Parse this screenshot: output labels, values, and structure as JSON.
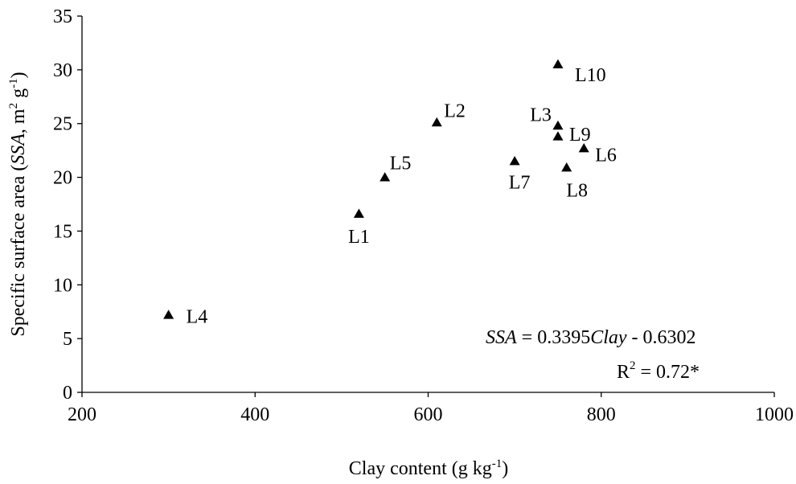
{
  "chart_data": {
    "type": "scatter",
    "title": "",
    "xlabel": "Clay content (g kg-1)",
    "xlabel_parts": {
      "text": "Clay content (g kg",
      "sup": "-1",
      "close": ")"
    },
    "ylabel": "Specific surface area (SSA, m2 g-1)",
    "ylabel_parts": {
      "pre": "Specific surface area (",
      "ital": "SSA",
      "mid": ", m",
      "sup1": "2",
      "g": " g",
      "sup2": "-1",
      "close": ")"
    },
    "xlim": [
      200,
      1000
    ],
    "ylim": [
      0,
      35
    ],
    "x_ticks": [
      200,
      400,
      600,
      800,
      1000
    ],
    "y_ticks": [
      0,
      5,
      10,
      15,
      20,
      25,
      30,
      35
    ],
    "grid": false,
    "legend": "none",
    "marker": "triangle",
    "marker_color": "#000000",
    "points": [
      {
        "label": "L1",
        "x": 520,
        "y": 16.6
      },
      {
        "label": "L2",
        "x": 610,
        "y": 25.1
      },
      {
        "label": "L3",
        "x": 750,
        "y": 24.8
      },
      {
        "label": "L4",
        "x": 300,
        "y": 7.2
      },
      {
        "label": "L5",
        "x": 550,
        "y": 20.0
      },
      {
        "label": "L6",
        "x": 780,
        "y": 22.7
      },
      {
        "label": "L7",
        "x": 700,
        "y": 21.5
      },
      {
        "label": "L8",
        "x": 760,
        "y": 20.9
      },
      {
        "label": "L9",
        "x": 750,
        "y": 23.8
      },
      {
        "label": "L10",
        "x": 750,
        "y": 30.5
      }
    ],
    "trendline": {
      "slope": 0.3395,
      "intercept": -0.6302,
      "x_range": [
        300,
        780
      ]
    },
    "equation": {
      "lhs": "SSA",
      "eq": " = 0.3395",
      "var": "Clay",
      "rest": " - 0.6302"
    },
    "r_squared": {
      "r": "R",
      "sup": "2",
      "rest": " = 0.72*"
    }
  }
}
